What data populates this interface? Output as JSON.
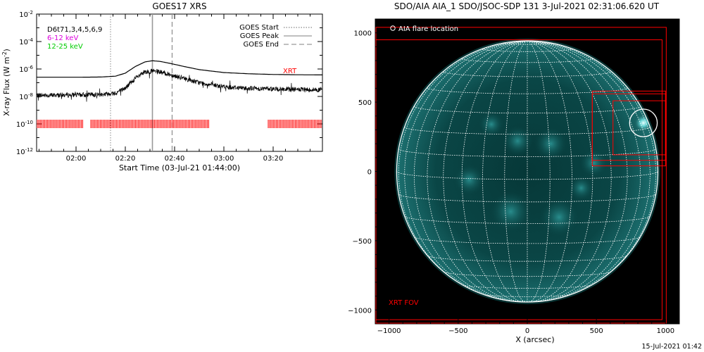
{
  "chart_data": [
    {
      "type": "line",
      "title": "GOES17 XRS",
      "xlabel": "Start Time (03-Jul-21 01:44:00)",
      "ylabel": "X-ray Flux (W m",
      "ylabel_exp": "-2",
      "ylabel_close": ")",
      "y_scale": "log",
      "ylim": [
        1e-12,
        0.01
      ],
      "xlim": [
        "01:44",
        "03:40"
      ],
      "x_ticks": [
        "02:00",
        "02:20",
        "02:40",
        "03:00",
        "03:20"
      ],
      "y_ticks": [
        {
          "value": -2,
          "base": "10",
          "exp": "-2"
        },
        {
          "value": -4,
          "base": "10",
          "exp": "-4"
        },
        {
          "value": -6,
          "base": "10",
          "exp": "-6"
        },
        {
          "value": -8,
          "base": "10",
          "exp": "-8"
        },
        {
          "value": -10,
          "base": "10",
          "exp": "-10"
        },
        {
          "value": -12,
          "base": "10",
          "exp": "-12"
        }
      ],
      "info_lines": [
        {
          "text": "D6t71,3,4,5,6,9",
          "color": "#000000"
        },
        {
          "text": "6-12 keV",
          "color": "#dd00dd"
        },
        {
          "text": "12-25 keV",
          "color": "#00cc00"
        }
      ],
      "legend": {
        "placement": "top-right",
        "entries": [
          {
            "label": "GOES Start",
            "style": "dotted"
          },
          {
            "label": "GOES Peak",
            "style": "solid"
          },
          {
            "label": "GOES End",
            "style": "dashed"
          }
        ]
      },
      "markers": {
        "start": "02:14",
        "peak": "02:31",
        "end": "02:39"
      },
      "series": [
        {
          "color": "#000000",
          "x": [
            "01:44",
            "02:00",
            "02:10",
            "02:16",
            "02:20",
            "02:24",
            "02:28",
            "02:31",
            "02:34",
            "02:38",
            "02:44",
            "02:50",
            "03:00",
            "03:10",
            "03:20",
            "03:30",
            "03:40"
          ],
          "y": [
            2.5e-07,
            2.5e-07,
            2.6e-07,
            3e-07,
            5e-07,
            1.5e-06,
            3.3e-06,
            4e-06,
            3.6e-06,
            2.6e-06,
            1.5e-06,
            9e-07,
            5.5e-07,
            4.5e-07,
            4e-07,
            3.8e-07,
            3.7e-07
          ]
        },
        {
          "color": "#000000",
          "noisy": true,
          "x": [
            "01:44",
            "02:00",
            "02:10",
            "02:16",
            "02:20",
            "02:24",
            "02:28",
            "02:31",
            "02:34",
            "02:38",
            "02:44",
            "02:50",
            "03:00",
            "03:10",
            "03:20",
            "03:30",
            "03:40"
          ],
          "y": [
            1.2e-08,
            1.3e-08,
            1.4e-08,
            1.8e-08,
            4e-08,
            2e-07,
            6e-07,
            7e-07,
            6e-07,
            4e-07,
            2e-07,
            1e-07,
            5e-08,
            4e-08,
            3.5e-08,
            3.2e-08,
            3e-08
          ]
        }
      ],
      "annotation": {
        "text": "XRT",
        "color": "#ff0000",
        "x": "03:24",
        "y": 5e-07
      },
      "xrt_coverage": {
        "color": "#ff0000",
        "y": 1e-10,
        "ranges": [
          [
            "01:44",
            "02:03"
          ],
          [
            "02:06",
            "02:54"
          ],
          [
            "03:18",
            "03:40"
          ]
        ]
      }
    },
    {
      "type": "image",
      "title": "SDO/AIA AIA_1 SDO/JSOC-SDP 131  3-Jul-2021 02:31:06.620 UT",
      "xlabel": "X (arcsec)",
      "xlim": [
        -1100,
        1100
      ],
      "ylim": [
        -1100,
        1100
      ],
      "x_ticks": [
        -1000,
        -500,
        0,
        500,
        1000
      ],
      "y_ticks": [
        -1000,
        -500,
        0,
        500,
        1000
      ],
      "x_tick_labels": [
        "−1000",
        "−500",
        "0",
        "500",
        "1000"
      ],
      "y_tick_labels": [
        "−1000",
        "−500",
        "0",
        "500",
        "1000"
      ],
      "legend_text": "AIA flare location",
      "fov_label": "XRT FOV",
      "solar_radius": 945,
      "flare_location": {
        "x": 840,
        "y": 350,
        "r": 100
      },
      "boxes": [
        {
          "x0": -1100,
          "y0": -1100,
          "x1": 1000,
          "y1": 1040
        },
        {
          "x0": -1100,
          "y0": -1070,
          "x1": 970,
          "y1": 950
        },
        {
          "x0": 470,
          "y0": 40,
          "x1": 1000,
          "y1": 580
        },
        {
          "x0": 470,
          "y0": 80,
          "x1": 1000,
          "y1": 560
        },
        {
          "x0": 620,
          "y0": 120,
          "x1": 1000,
          "y1": 510
        }
      ],
      "colors": {
        "disk": "#0c4f4f",
        "disk_edge": "#2a8a8a",
        "box": "#ff0000",
        "grid": "#ffffff",
        "background": "#000000"
      },
      "timestamp": "15-Jul-2021 01:42"
    }
  ]
}
